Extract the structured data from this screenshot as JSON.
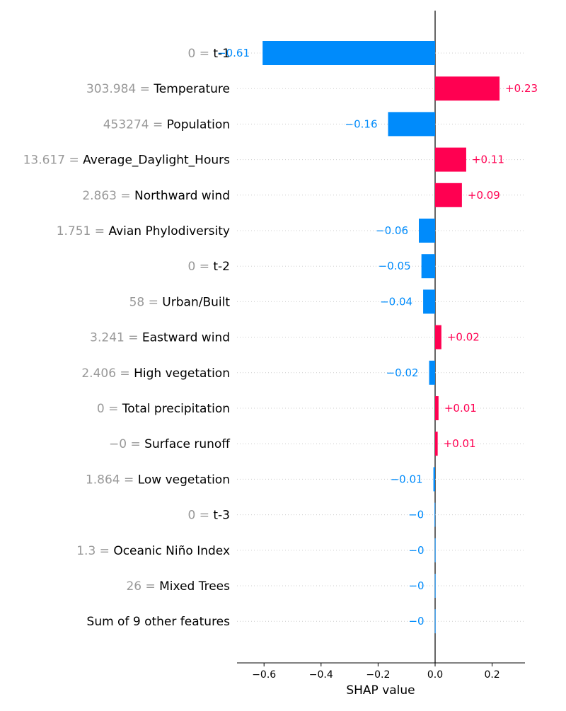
{
  "chart_data": {
    "type": "bar",
    "title": "",
    "xlabel": "SHAP value",
    "ylabel": "",
    "xlim": [
      -0.69,
      0.31
    ],
    "xticks": [
      {
        "value": -0.6,
        "label": "−0.6"
      },
      {
        "value": -0.4,
        "label": "−0.4"
      },
      {
        "value": -0.2,
        "label": "−0.2"
      },
      {
        "value": 0.0,
        "label": "0.0"
      },
      {
        "value": 0.2,
        "label": "0.2"
      }
    ],
    "grid": "horizontal dotted",
    "colors": {
      "positive": "#ff0051",
      "negative": "#008bfb",
      "zero_line": "#000000",
      "feature_value": "#999999"
    },
    "features": [
      {
        "feature": "t-1",
        "feature_value": "0",
        "shap": -0.605,
        "label": "−0.61"
      },
      {
        "feature": "Temperature",
        "feature_value": "303.984",
        "shap": 0.226,
        "label": "+0.23"
      },
      {
        "feature": "Population",
        "feature_value": "453274",
        "shap": -0.165,
        "label": "−0.16"
      },
      {
        "feature": "Average_Daylight_Hours",
        "feature_value": "13.617",
        "shap": 0.109,
        "label": "+0.11"
      },
      {
        "feature": "Northward wind",
        "feature_value": "2.863",
        "shap": 0.094,
        "label": "+0.09"
      },
      {
        "feature": "Avian Phylodiversity",
        "feature_value": "1.751",
        "shap": -0.057,
        "label": "−0.06"
      },
      {
        "feature": "t-2",
        "feature_value": "0",
        "shap": -0.048,
        "label": "−0.05"
      },
      {
        "feature": "Urban/Built",
        "feature_value": "58",
        "shap": -0.042,
        "label": "−0.04"
      },
      {
        "feature": "Eastward wind",
        "feature_value": "3.241",
        "shap": 0.022,
        "label": "+0.02"
      },
      {
        "feature": "High vegetation",
        "feature_value": "2.406",
        "shap": -0.021,
        "label": "−0.02"
      },
      {
        "feature": "Total precipitation",
        "feature_value": "0",
        "shap": 0.012,
        "label": "+0.01"
      },
      {
        "feature": "Surface runoff",
        "feature_value": "−0",
        "shap": 0.009,
        "label": "+0.01"
      },
      {
        "feature": "Low vegetation",
        "feature_value": "1.864",
        "shap": -0.006,
        "label": "−0.01"
      },
      {
        "feature": "t-3",
        "feature_value": "0",
        "shap": -0.002,
        "label": "−0"
      },
      {
        "feature": "Oceanic Niño Index",
        "feature_value": "1.3",
        "shap": -0.001,
        "label": "−0"
      },
      {
        "feature": "Mixed Trees",
        "feature_value": "26",
        "shap": -0.001,
        "label": "−0"
      },
      {
        "feature": "Sum of 9 other features",
        "feature_value": "",
        "shap": -0.001,
        "label": "−0"
      }
    ]
  }
}
